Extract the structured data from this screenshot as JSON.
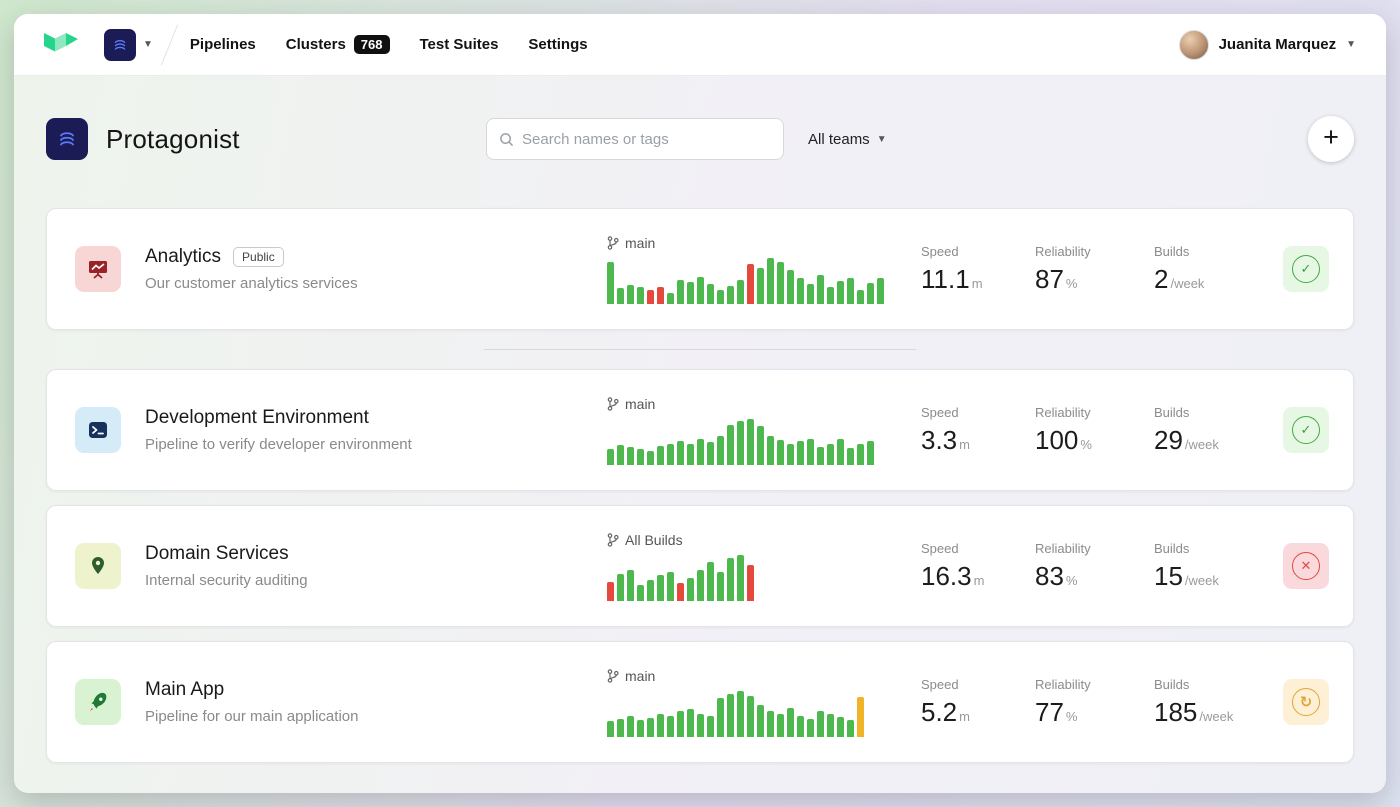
{
  "topbar": {
    "nav": [
      {
        "label": "Pipelines"
      },
      {
        "label": "Clusters",
        "badge": "768"
      },
      {
        "label": "Test Suites"
      },
      {
        "label": "Settings"
      }
    ],
    "user": {
      "name": "Juanita Marquez"
    }
  },
  "header": {
    "title": "Protagonist",
    "search_placeholder": "Search names or tags",
    "teams_filter": "All teams",
    "add_button_label": "+"
  },
  "labels": {
    "speed": "Speed",
    "reliability": "Reliability",
    "builds": "Builds"
  },
  "colors": {
    "green": "#4db84d",
    "red": "#e5483c",
    "orange": "#f0b429",
    "brand_green": "#25d58c",
    "navy": "#1b1b55"
  },
  "pipelines": [
    {
      "name": "Analytics",
      "visibility_badge": "Public",
      "description": "Our customer analytics services",
      "branch": "main",
      "speed": {
        "value": "11.1",
        "unit": "m"
      },
      "reliability": {
        "value": "87",
        "unit": "%"
      },
      "builds": {
        "value": "2",
        "unit": "/week"
      },
      "status": "passed",
      "chart": {
        "type": "bar",
        "bars": [
          {
            "h": 0.92
          },
          {
            "h": 0.34
          },
          {
            "h": 0.42
          },
          {
            "h": 0.38
          },
          {
            "h": 0.3,
            "c": "red"
          },
          {
            "h": 0.36,
            "c": "red"
          },
          {
            "h": 0.24
          },
          {
            "h": 0.52
          },
          {
            "h": 0.48
          },
          {
            "h": 0.58
          },
          {
            "h": 0.44
          },
          {
            "h": 0.3
          },
          {
            "h": 0.4
          },
          {
            "h": 0.52
          },
          {
            "h": 0.88,
            "c": "red"
          },
          {
            "h": 0.78
          },
          {
            "h": 1.0
          },
          {
            "h": 0.92
          },
          {
            "h": 0.74
          },
          {
            "h": 0.56
          },
          {
            "h": 0.44
          },
          {
            "h": 0.62
          },
          {
            "h": 0.36
          },
          {
            "h": 0.5
          },
          {
            "h": 0.56
          },
          {
            "h": 0.3
          },
          {
            "h": 0.46
          },
          {
            "h": 0.56
          }
        ]
      }
    },
    {
      "name": "Development Environment",
      "description": "Pipeline to verify developer environment",
      "branch": "main",
      "speed": {
        "value": "3.3",
        "unit": "m"
      },
      "reliability": {
        "value": "100",
        "unit": "%"
      },
      "builds": {
        "value": "29",
        "unit": "/week"
      },
      "status": "passed",
      "chart": {
        "type": "bar",
        "bars": [
          {
            "h": 0.34
          },
          {
            "h": 0.44
          },
          {
            "h": 0.4
          },
          {
            "h": 0.34
          },
          {
            "h": 0.3
          },
          {
            "h": 0.42
          },
          {
            "h": 0.46
          },
          {
            "h": 0.52
          },
          {
            "h": 0.46
          },
          {
            "h": 0.56
          },
          {
            "h": 0.5
          },
          {
            "h": 0.62
          },
          {
            "h": 0.86
          },
          {
            "h": 0.96
          },
          {
            "h": 1.0
          },
          {
            "h": 0.84
          },
          {
            "h": 0.64
          },
          {
            "h": 0.54
          },
          {
            "h": 0.46
          },
          {
            "h": 0.52
          },
          {
            "h": 0.56
          },
          {
            "h": 0.4
          },
          {
            "h": 0.46
          },
          {
            "h": 0.56
          },
          {
            "h": 0.36
          },
          {
            "h": 0.46
          },
          {
            "h": 0.52
          }
        ]
      }
    },
    {
      "name": "Domain Services",
      "description": "Internal security auditing",
      "branch": "All Builds",
      "speed": {
        "value": "16.3",
        "unit": "m"
      },
      "reliability": {
        "value": "83",
        "unit": "%"
      },
      "builds": {
        "value": "15",
        "unit": "/week"
      },
      "status": "failed",
      "chart": {
        "type": "bar",
        "bars": [
          {
            "h": 0.42,
            "c": "red"
          },
          {
            "h": 0.58
          },
          {
            "h": 0.68
          },
          {
            "h": 0.34
          },
          {
            "h": 0.46
          },
          {
            "h": 0.56
          },
          {
            "h": 0.64
          },
          {
            "h": 0.4,
            "c": "red"
          },
          {
            "h": 0.5
          },
          {
            "h": 0.68
          },
          {
            "h": 0.84
          },
          {
            "h": 0.62
          },
          {
            "h": 0.94
          },
          {
            "h": 1.0
          },
          {
            "h": 0.78,
            "c": "red"
          }
        ]
      }
    },
    {
      "name": "Main App",
      "description": "Pipeline for our main application",
      "branch": "main",
      "speed": {
        "value": "5.2",
        "unit": "m"
      },
      "reliability": {
        "value": "77",
        "unit": "%"
      },
      "builds": {
        "value": "185",
        "unit": "/week"
      },
      "status": "running",
      "chart": {
        "type": "bar",
        "bars": [
          {
            "h": 0.34
          },
          {
            "h": 0.4
          },
          {
            "h": 0.46
          },
          {
            "h": 0.36
          },
          {
            "h": 0.42
          },
          {
            "h": 0.5
          },
          {
            "h": 0.46
          },
          {
            "h": 0.56
          },
          {
            "h": 0.6
          },
          {
            "h": 0.5
          },
          {
            "h": 0.46
          },
          {
            "h": 0.84
          },
          {
            "h": 0.94
          },
          {
            "h": 1.0
          },
          {
            "h": 0.9
          },
          {
            "h": 0.7
          },
          {
            "h": 0.56
          },
          {
            "h": 0.5
          },
          {
            "h": 0.62
          },
          {
            "h": 0.46
          },
          {
            "h": 0.4
          },
          {
            "h": 0.56
          },
          {
            "h": 0.5
          },
          {
            "h": 0.44
          },
          {
            "h": 0.36
          },
          {
            "h": 0.88,
            "c": "orange"
          }
        ]
      }
    }
  ]
}
